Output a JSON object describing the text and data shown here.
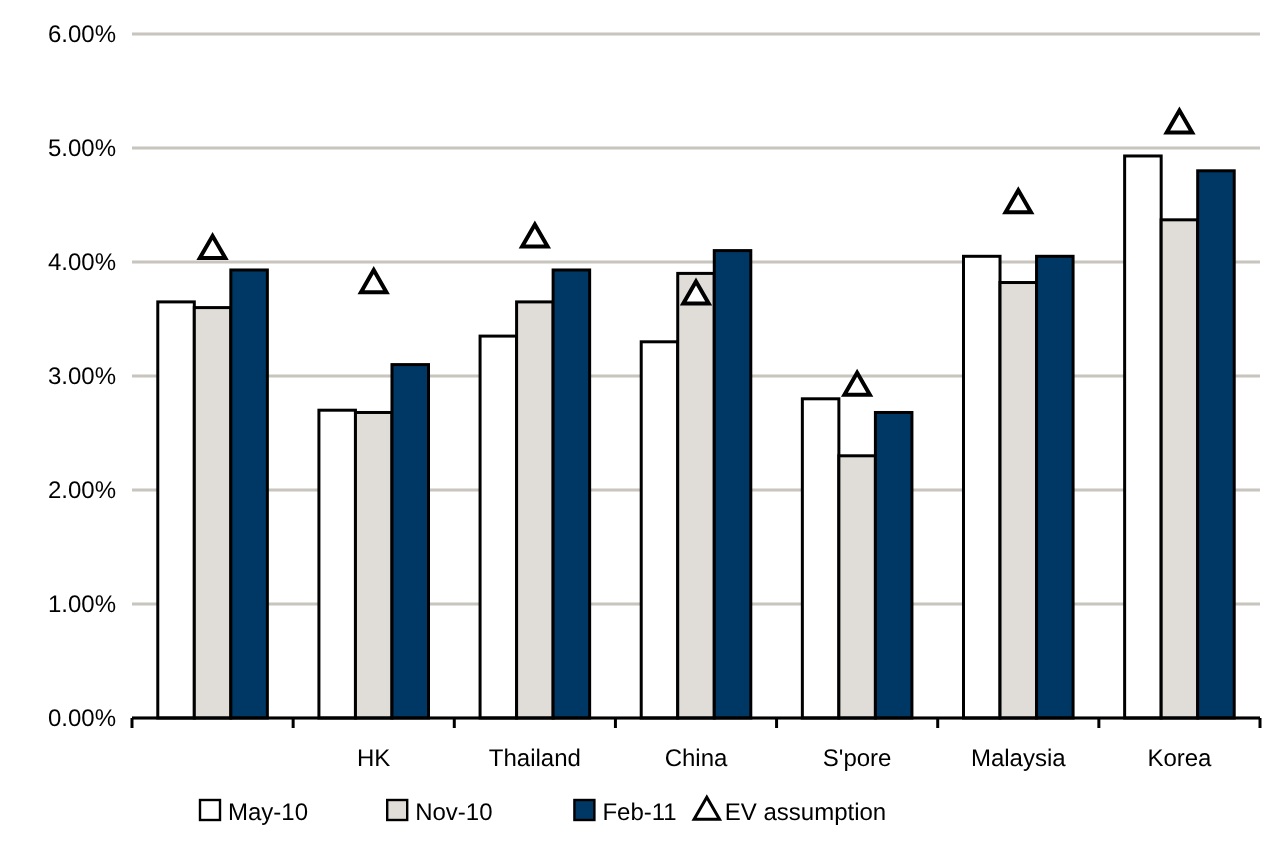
{
  "chart_data": {
    "type": "bar",
    "categories": [
      null,
      "HK",
      "Thailand",
      "China",
      "S'pore",
      "Malaysia",
      "Korea"
    ],
    "series": [
      {
        "name": "May-10",
        "color": "#ffffff",
        "values": [
          3.65,
          2.7,
          3.35,
          3.3,
          2.8,
          4.05,
          4.93
        ]
      },
      {
        "name": "Nov-10",
        "color": "#e0ddd8",
        "values": [
          3.6,
          2.68,
          3.65,
          3.9,
          2.3,
          3.82,
          4.37
        ]
      },
      {
        "name": "Feb-11",
        "color": "#003865",
        "values": [
          3.93,
          3.1,
          3.93,
          4.1,
          2.68,
          4.05,
          4.8
        ]
      },
      {
        "name": "EV assumption",
        "type": "scatter",
        "marker": "triangle",
        "color": "#000000",
        "values": [
          4.1,
          3.8,
          4.2,
          3.7,
          2.9,
          4.5,
          5.2
        ]
      }
    ],
    "ylim": [
      0,
      6
    ],
    "yticks": [
      {
        "value": 0,
        "label": "0.00%"
      },
      {
        "value": 1,
        "label": "1.00%"
      },
      {
        "value": 2,
        "label": "2.00%"
      },
      {
        "value": 3,
        "label": "3.00%"
      },
      {
        "value": 4,
        "label": "4.00%"
      },
      {
        "value": 5,
        "label": "5.00%"
      },
      {
        "value": 6,
        "label": "6.00%"
      }
    ],
    "grid": "y",
    "legend": "bottom"
  }
}
